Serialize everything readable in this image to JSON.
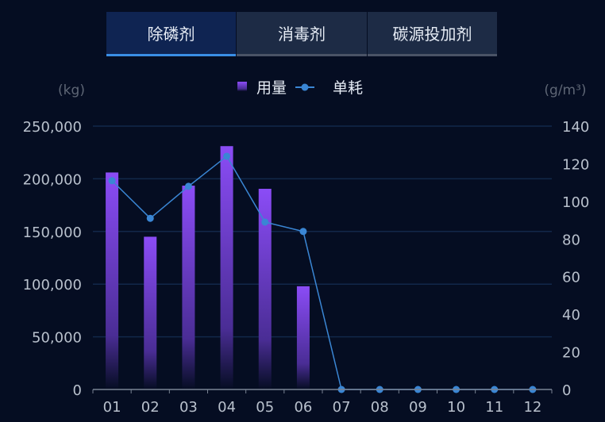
{
  "tabs": [
    {
      "label": "除磷剂",
      "active": true
    },
    {
      "label": "消毒剂",
      "active": false
    },
    {
      "label": "碳源投加剂",
      "active": false
    }
  ],
  "chart_data": {
    "type": "bar",
    "categories": [
      "01",
      "02",
      "03",
      "04",
      "05",
      "06",
      "07",
      "08",
      "09",
      "10",
      "11",
      "12"
    ],
    "series": [
      {
        "name": "用量",
        "type": "bar",
        "axis": "left",
        "color": "#8b4cf6",
        "values": [
          206000,
          145000,
          193500,
          231000,
          190500,
          98000,
          null,
          null,
          null,
          null,
          null,
          null
        ]
      },
      {
        "name": "单耗",
        "type": "line",
        "axis": "right",
        "color": "#3a86d4",
        "values": [
          111,
          91,
          108,
          124,
          89,
          84,
          0,
          0,
          0,
          0,
          0,
          0
        ]
      }
    ],
    "ylabel_left": "(kg)",
    "ylabel_right": "(g/m³)",
    "ylim_left": [
      0,
      250000
    ],
    "ylim_right": [
      0,
      140
    ],
    "yticks_left": [
      "0",
      "50,000",
      "100,000",
      "150,000",
      "200,000",
      "250,000"
    ],
    "yticks_right": [
      "0",
      "20",
      "40",
      "60",
      "80",
      "100",
      "120",
      "140"
    ],
    "grid": true,
    "legend": "top-center"
  }
}
